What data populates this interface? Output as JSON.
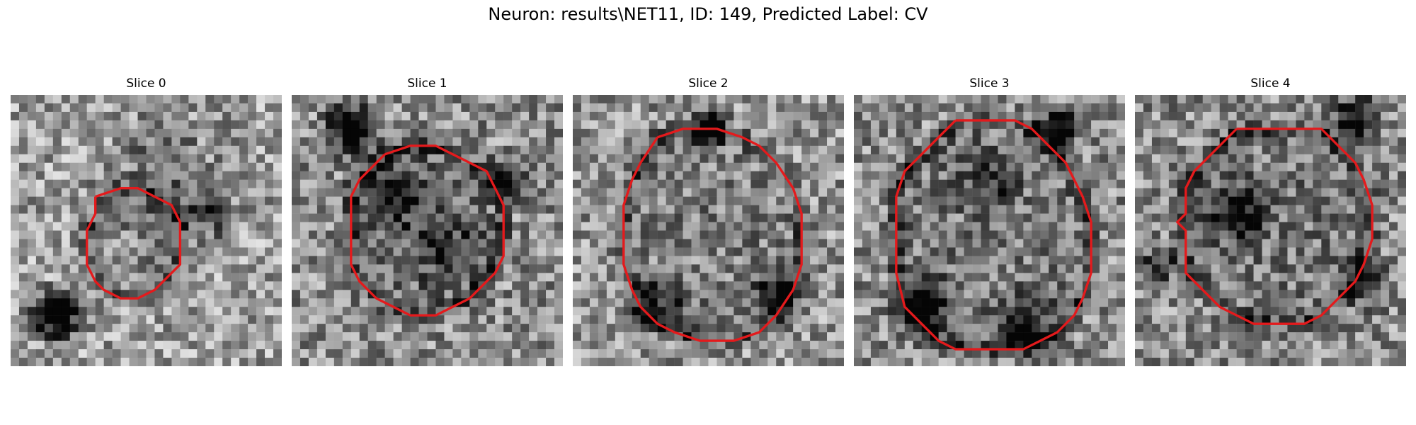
{
  "figure": {
    "title": "Neuron: results\\NET11, ID: 149, Predicted Label: CV",
    "contour_color": "#e41a1c"
  },
  "slices": [
    {
      "title": "Slice 0",
      "grid": 32,
      "seed": 11,
      "contour": [
        [
          10,
          12
        ],
        [
          13,
          11
        ],
        [
          15,
          11
        ],
        [
          17,
          12
        ],
        [
          19,
          13
        ],
        [
          20,
          15
        ],
        [
          20,
          20
        ],
        [
          19,
          21
        ],
        [
          18,
          22
        ],
        [
          17,
          23
        ],
        [
          15,
          24
        ],
        [
          13,
          24
        ],
        [
          11,
          23
        ],
        [
          10,
          22
        ],
        [
          9,
          20
        ],
        [
          9,
          16
        ],
        [
          10,
          14
        ],
        [
          10,
          12
        ]
      ],
      "dark_blobs": [
        [
          5.5,
          26,
          2.5,
          0.9
        ],
        [
          23,
          14,
          3,
          0.35
        ],
        [
          18,
          9,
          6,
          0.2
        ]
      ],
      "mean": 0.62
    },
    {
      "title": "Slice 1",
      "grid": 32,
      "seed": 23,
      "contour": [
        [
          11,
          7
        ],
        [
          14,
          6
        ],
        [
          17,
          6
        ],
        [
          19,
          7
        ],
        [
          21,
          8
        ],
        [
          23,
          9
        ],
        [
          24,
          11
        ],
        [
          25,
          13
        ],
        [
          25,
          19
        ],
        [
          24,
          21
        ],
        [
          23,
          22
        ],
        [
          22,
          23
        ],
        [
          21,
          24
        ],
        [
          19,
          25
        ],
        [
          17,
          26
        ],
        [
          14,
          26
        ],
        [
          12,
          25
        ],
        [
          10,
          24
        ],
        [
          8,
          22
        ],
        [
          7,
          20
        ],
        [
          7,
          12
        ],
        [
          8,
          10
        ],
        [
          9,
          9
        ],
        [
          11,
          7
        ]
      ],
      "dark_blobs": [
        [
          7,
          4,
          2.5,
          0.8
        ],
        [
          25,
          10,
          2,
          0.7
        ],
        [
          12,
          12,
          4,
          0.3
        ],
        [
          18,
          18,
          4,
          0.3
        ]
      ],
      "mean": 0.55
    },
    {
      "title": "Slice 2",
      "grid": 32,
      "seed": 37,
      "contour": [
        [
          10,
          5
        ],
        [
          13,
          4
        ],
        [
          17,
          4
        ],
        [
          20,
          5
        ],
        [
          22,
          6
        ],
        [
          24,
          8
        ],
        [
          26,
          11
        ],
        [
          27,
          14
        ],
        [
          27,
          20
        ],
        [
          26,
          23
        ],
        [
          24,
          26
        ],
        [
          22,
          28
        ],
        [
          19,
          29
        ],
        [
          15,
          29
        ],
        [
          12,
          28
        ],
        [
          10,
          27
        ],
        [
          8,
          25
        ],
        [
          7,
          23
        ],
        [
          6,
          20
        ],
        [
          6,
          13
        ],
        [
          7,
          10
        ],
        [
          8,
          8
        ],
        [
          10,
          5
        ]
      ],
      "dark_blobs": [
        [
          16,
          4,
          2,
          0.7
        ],
        [
          24,
          24,
          3,
          0.4
        ],
        [
          10,
          25,
          3,
          0.4
        ]
      ],
      "mean": 0.58
    },
    {
      "title": "Slice 3",
      "grid": 32,
      "seed": 51,
      "contour": [
        [
          12,
          3
        ],
        [
          19,
          3
        ],
        [
          21,
          4
        ],
        [
          23,
          6
        ],
        [
          25,
          8
        ],
        [
          27,
          12
        ],
        [
          28,
          15
        ],
        [
          28,
          21
        ],
        [
          27,
          24
        ],
        [
          26,
          26
        ],
        [
          24,
          28
        ],
        [
          22,
          29
        ],
        [
          20,
          30
        ],
        [
          12,
          30
        ],
        [
          10,
          29
        ],
        [
          8,
          27
        ],
        [
          6,
          25
        ],
        [
          5,
          21
        ],
        [
          5,
          12
        ],
        [
          6,
          9
        ],
        [
          8,
          7
        ],
        [
          10,
          5
        ],
        [
          12,
          3
        ]
      ],
      "dark_blobs": [
        [
          24,
          4,
          2,
          0.8
        ],
        [
          8,
          25,
          3,
          0.6
        ],
        [
          20,
          27,
          3,
          0.5
        ],
        [
          16,
          10,
          3,
          0.3
        ]
      ],
      "mean": 0.55
    },
    {
      "title": "Slice 4",
      "grid": 32,
      "seed": 67,
      "contour": [
        [
          12,
          4
        ],
        [
          22,
          4
        ],
        [
          24,
          6
        ],
        [
          26,
          8
        ],
        [
          27,
          10
        ],
        [
          28,
          13
        ],
        [
          28,
          17
        ],
        [
          27,
          20
        ],
        [
          26,
          22
        ],
        [
          24,
          24
        ],
        [
          22,
          26
        ],
        [
          20,
          27
        ],
        [
          14,
          27
        ],
        [
          12,
          26
        ],
        [
          10,
          25
        ],
        [
          8,
          23
        ],
        [
          6,
          21
        ],
        [
          6,
          16
        ],
        [
          5,
          15
        ],
        [
          6,
          14
        ],
        [
          6,
          11
        ],
        [
          7,
          9
        ],
        [
          9,
          7
        ],
        [
          12,
          4
        ]
      ],
      "dark_blobs": [
        [
          26,
          3,
          2.5,
          0.6
        ],
        [
          12,
          14,
          3,
          0.5
        ],
        [
          27,
          22,
          2.5,
          0.5
        ],
        [
          3,
          20,
          2,
          0.4
        ]
      ],
      "mean": 0.55
    }
  ]
}
